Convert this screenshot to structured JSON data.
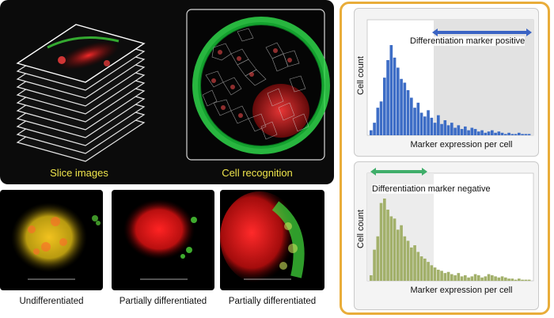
{
  "top_panel": {
    "slice_label": "Slice images",
    "recognition_label": "Cell recognition"
  },
  "bottom_labels": [
    "Undifferentiated",
    "Partially differentiated",
    "Partially differentiated"
  ],
  "colors": {
    "accent_border": "#e9ad3a",
    "caption_yellow": "#f0e64c",
    "blue_bars": "#3d6dc6",
    "green_bars": "#a2b06a"
  },
  "chart_data": [
    {
      "type": "bar",
      "annotation": "Differentiation marker positive",
      "ylabel": "Cell count",
      "xlabel": "Marker expression per cell",
      "highlight_region": "right",
      "bar_color": "#3d6dc6",
      "values": [
        4,
        10,
        22,
        27,
        46,
        60,
        72,
        62,
        54,
        45,
        42,
        36,
        30,
        22,
        26,
        18,
        15,
        20,
        14,
        10,
        16,
        9,
        12,
        8,
        10,
        6,
        8,
        5,
        7,
        4,
        6,
        5,
        3,
        4,
        2,
        3,
        4,
        2,
        3,
        2,
        1,
        2,
        1,
        1,
        2,
        1,
        1,
        1
      ]
    },
    {
      "type": "bar",
      "annotation": "Differentiation marker negative",
      "ylabel": "Cell count",
      "xlabel": "Marker expression per cell",
      "highlight_region": "left",
      "bar_color": "#a2b06a",
      "values": [
        5,
        28,
        40,
        70,
        74,
        64,
        58,
        56,
        46,
        50,
        40,
        36,
        30,
        32,
        26,
        22,
        20,
        17,
        14,
        12,
        10,
        9,
        7,
        8,
        6,
        5,
        7,
        4,
        5,
        3,
        4,
        6,
        5,
        3,
        4,
        6,
        5,
        4,
        3,
        4,
        3,
        2,
        2,
        1,
        2,
        1,
        1,
        1
      ]
    }
  ]
}
